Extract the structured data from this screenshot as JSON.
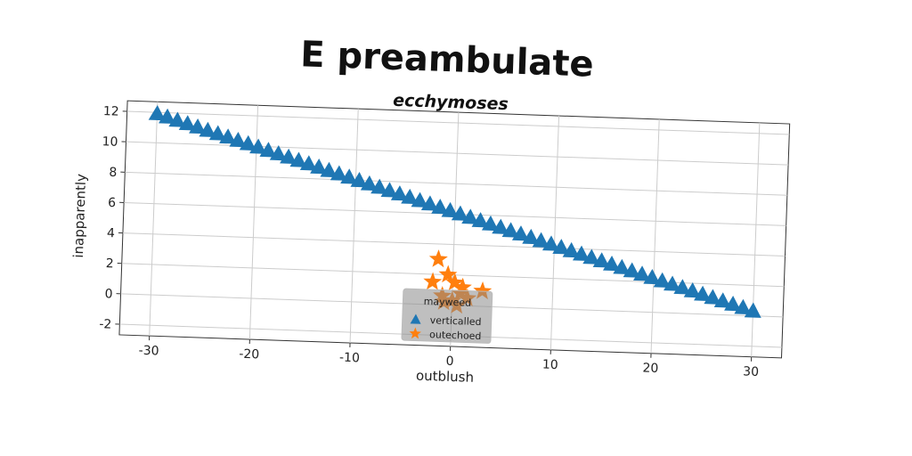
{
  "chart_data": {
    "type": "scatter",
    "title": "E preambulate",
    "subtitle": "ecchymoses",
    "xlabel": "outblush",
    "ylabel": "inapparently",
    "xlim": [
      -33,
      33
    ],
    "ylim": [
      -2.7,
      12.7
    ],
    "xticks": [
      -30,
      -20,
      -10,
      0,
      10,
      20,
      30
    ],
    "yticks": [
      -2,
      0,
      2,
      4,
      6,
      8,
      10,
      12
    ],
    "grid": true,
    "legend": {
      "title": "mayweed",
      "position": "lower-center"
    },
    "series": [
      {
        "name": "verticalled",
        "marker": "triangle",
        "color": "#1f77b4",
        "line": {
          "x_start": -30,
          "y_start": 11.9,
          "x_end": 30,
          "y_end": 0.3,
          "count": 60
        }
      },
      {
        "name": "outechoed",
        "marker": "star",
        "color": "#ff7f0e",
        "x": [
          -1.5,
          -0.5,
          0.2,
          1.0,
          -2.0,
          0.8,
          -1.0,
          1.5,
          3.0,
          0.0,
          -0.8,
          0.5
        ],
        "y": [
          3.0,
          2.0,
          1.5,
          1.2,
          1.5,
          0.8,
          0.6,
          0.5,
          1.0,
          0.3,
          0.2,
          0.0
        ]
      }
    ]
  }
}
